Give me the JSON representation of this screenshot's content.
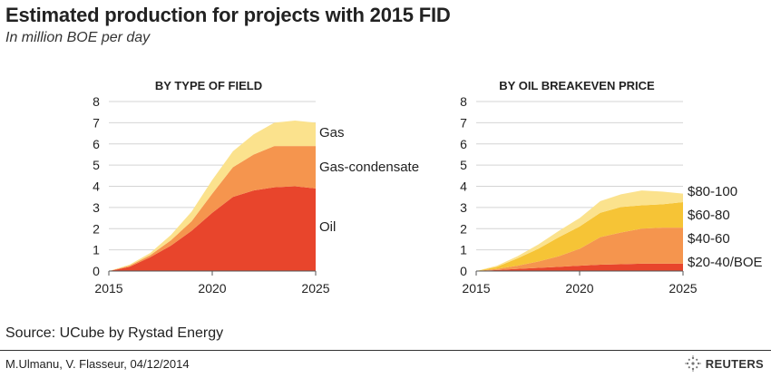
{
  "header": {
    "title": "Estimated production for projects with 2015 FID",
    "subtitle": "In million BOE per day"
  },
  "footer": {
    "source": "Source: UCube by Rystad Energy",
    "credit": "M.Ulmanu, V. Flasseur, 04/12/2014",
    "logo": "REUTERS"
  },
  "chart_data": [
    {
      "type": "area",
      "stacked": true,
      "title": "BY TYPE OF FIELD",
      "x": [
        2015,
        2016,
        2017,
        2018,
        2019,
        2020,
        2021,
        2022,
        2023,
        2024,
        2025
      ],
      "ylim": [
        0,
        8
      ],
      "yticks": [
        0,
        1,
        2,
        3,
        4,
        5,
        6,
        7,
        8
      ],
      "xticks": [
        2015,
        2020,
        2025
      ],
      "grid": true,
      "series": [
        {
          "name": "Oil",
          "color": "#e8452c",
          "values": [
            0.0,
            0.2,
            0.65,
            1.2,
            1.9,
            2.75,
            3.5,
            3.8,
            3.95,
            4.0,
            3.9
          ]
        },
        {
          "name": "Gas-condensate",
          "color": "#f5954e",
          "values": [
            0.0,
            0.05,
            0.1,
            0.25,
            0.45,
            0.9,
            1.4,
            1.7,
            1.95,
            1.9,
            2.0
          ]
        },
        {
          "name": "Gas",
          "color": "#fbe28d",
          "values": [
            0.0,
            0.05,
            0.1,
            0.25,
            0.45,
            0.65,
            0.75,
            0.95,
            1.1,
            1.2,
            1.1
          ]
        }
      ]
    },
    {
      "type": "area",
      "stacked": true,
      "title": "BY OIL BREAKEVEN PRICE",
      "x": [
        2015,
        2016,
        2017,
        2018,
        2019,
        2020,
        2021,
        2022,
        2023,
        2024,
        2025
      ],
      "ylim": [
        0,
        8
      ],
      "yticks": [
        0,
        1,
        2,
        3,
        4,
        5,
        6,
        7,
        8
      ],
      "xticks": [
        2015,
        2020,
        2025
      ],
      "grid": true,
      "series": [
        {
          "name": "$20-40/BOE",
          "color": "#e8452c",
          "values": [
            0.0,
            0.05,
            0.1,
            0.15,
            0.2,
            0.25,
            0.3,
            0.32,
            0.35,
            0.35,
            0.35
          ]
        },
        {
          "name": "$40-60",
          "color": "#f5954e",
          "values": [
            0.0,
            0.05,
            0.15,
            0.3,
            0.5,
            0.8,
            1.3,
            1.5,
            1.65,
            1.7,
            1.7
          ]
        },
        {
          "name": "$60-80",
          "color": "#f6c436",
          "values": [
            0.0,
            0.1,
            0.35,
            0.6,
            0.9,
            1.05,
            1.15,
            1.2,
            1.1,
            1.1,
            1.2
          ]
        },
        {
          "name": "$80-100",
          "color": "#fbe28d",
          "values": [
            0.0,
            0.05,
            0.1,
            0.2,
            0.3,
            0.4,
            0.55,
            0.6,
            0.7,
            0.6,
            0.4
          ]
        }
      ]
    }
  ]
}
